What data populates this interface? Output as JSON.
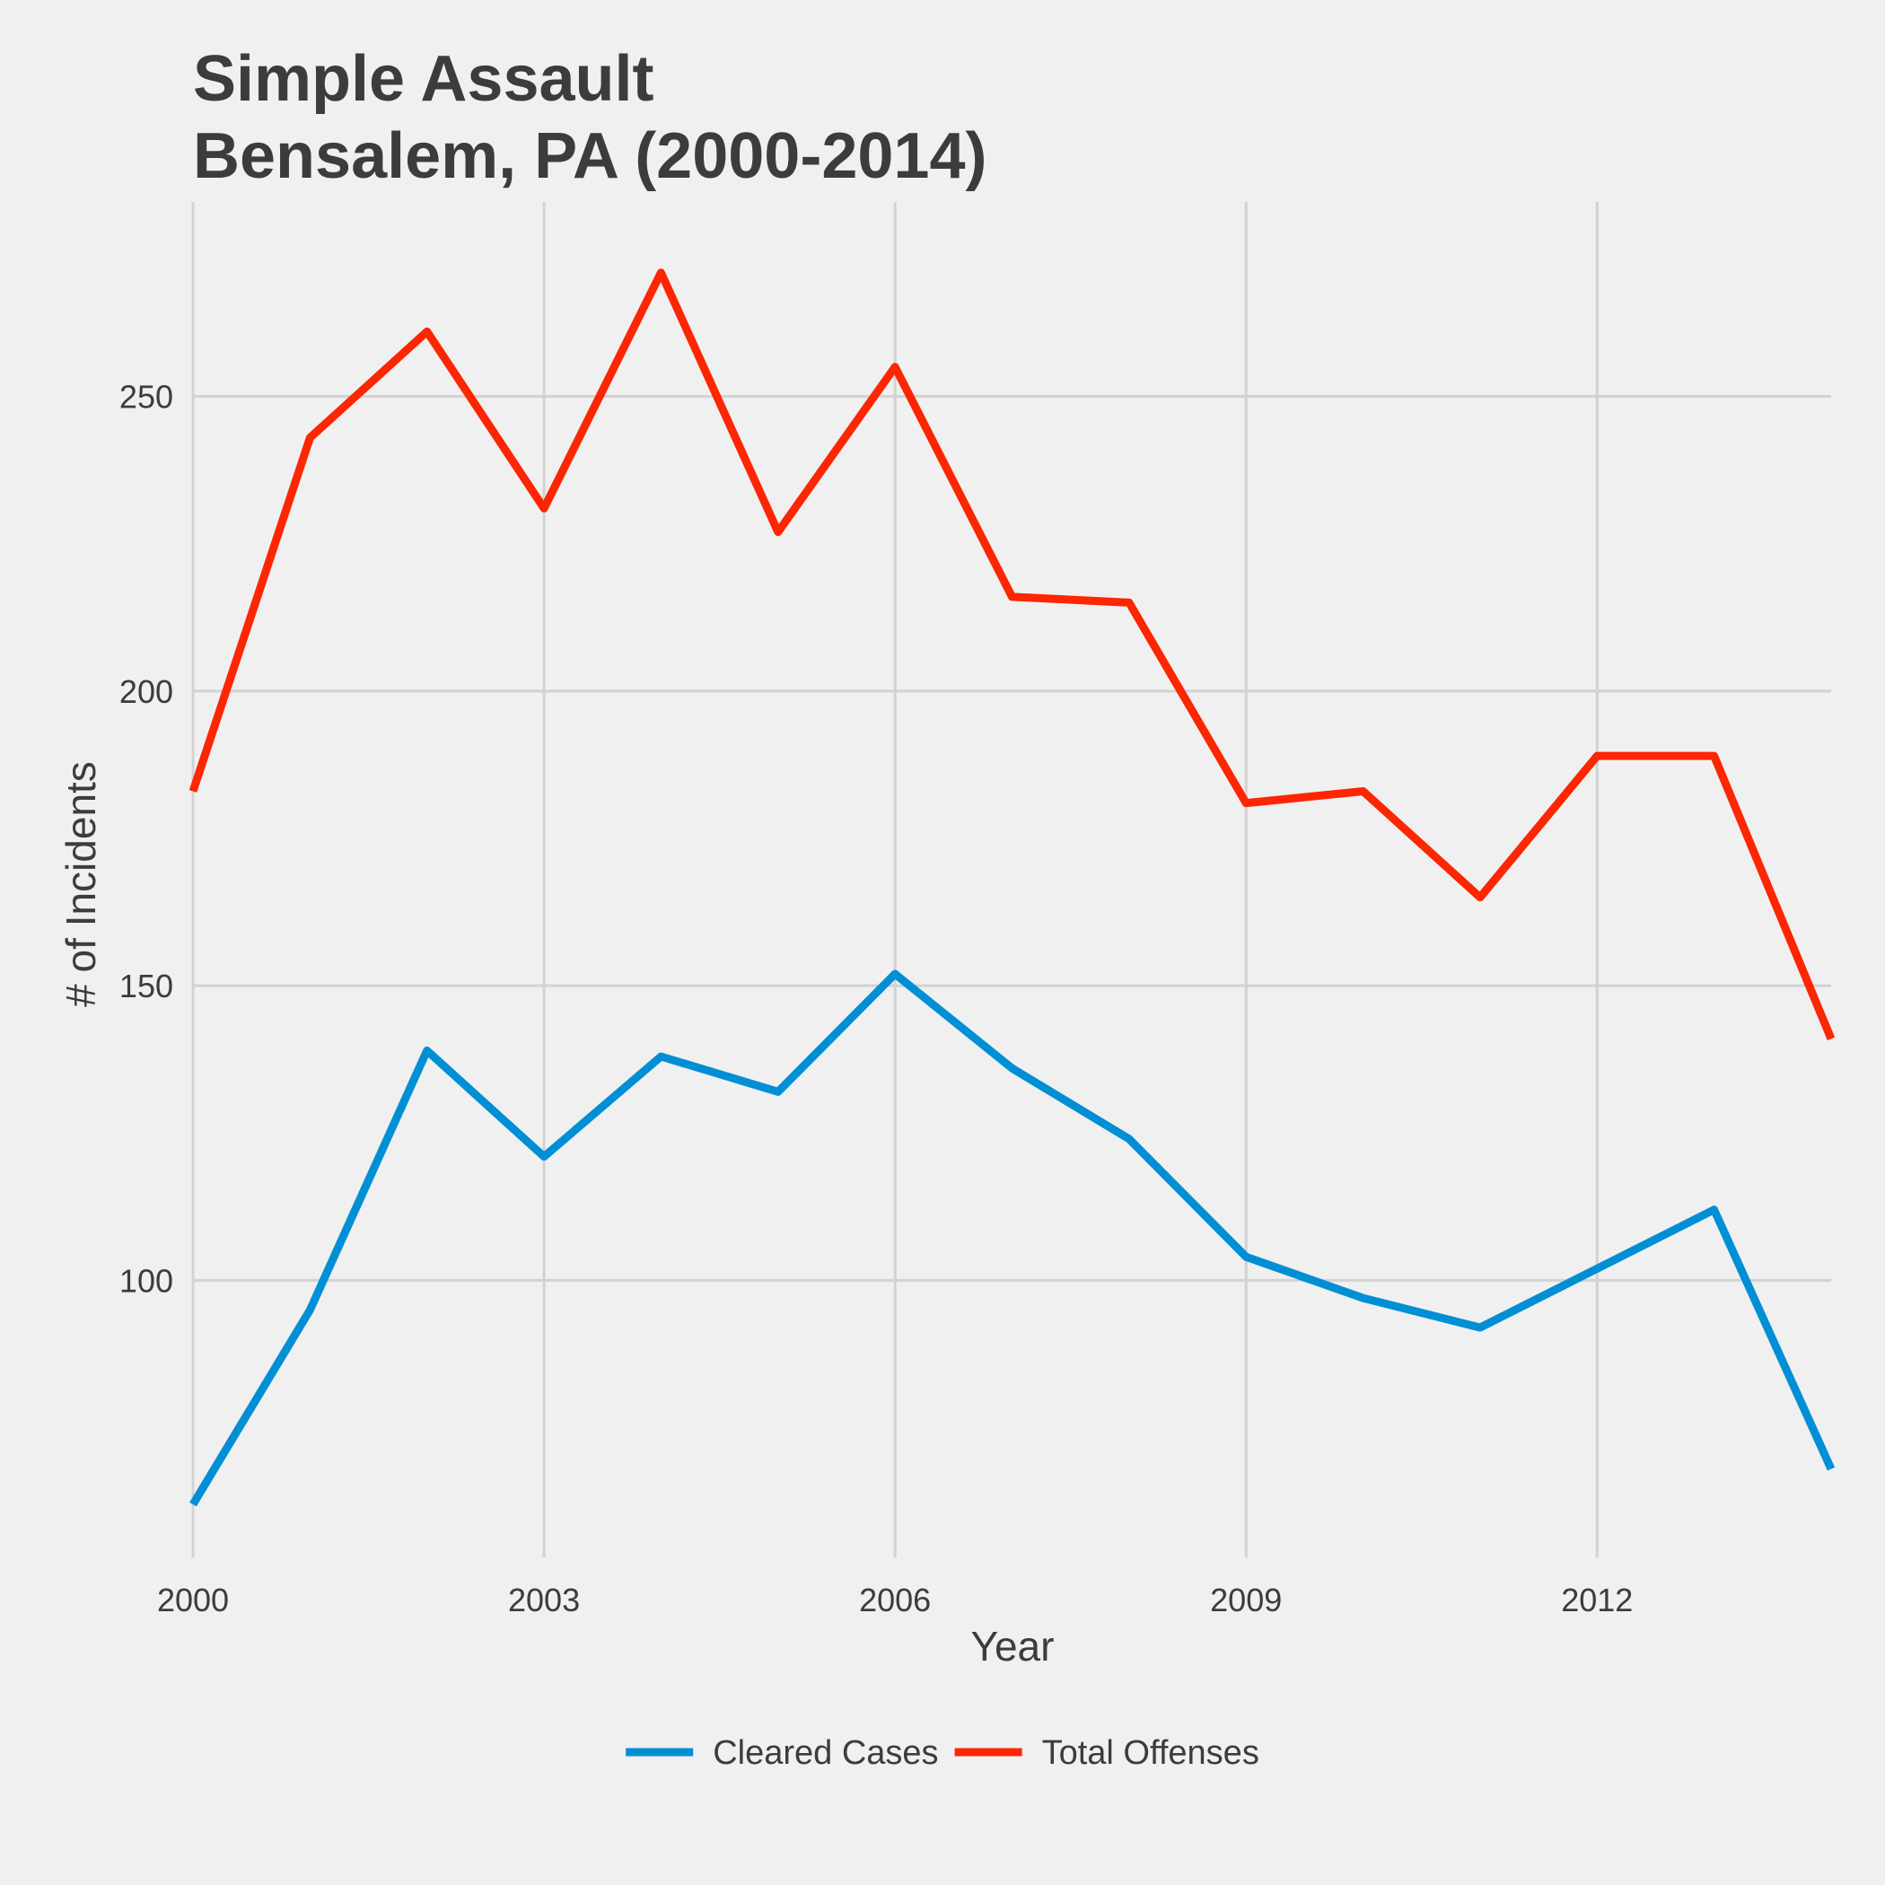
{
  "chart_data": {
    "type": "line",
    "title": [
      "Simple Assault",
      "Bensalem, PA (2000-2014)"
    ],
    "xlabel": "Year",
    "ylabel": "# of Incidents",
    "x": [
      2000,
      2001,
      2002,
      2003,
      2004,
      2005,
      2006,
      2007,
      2008,
      2009,
      2010,
      2011,
      2012,
      2013,
      2014
    ],
    "xlim": [
      2000,
      2014
    ],
    "ylim": [
      53,
      283
    ],
    "xticks": [
      2000,
      2003,
      2006,
      2009,
      2012
    ],
    "xtick_labels": [
      "2000",
      "2003",
      "2006",
      "2009",
      "2012"
    ],
    "yticks": [
      100,
      150,
      200,
      250
    ],
    "ytick_labels": [
      "100",
      "150",
      "200",
      "250"
    ],
    "grid": true,
    "legend_position": "bottom",
    "series": [
      {
        "name": "Cleared Cases",
        "color": "#008fd5",
        "values": [
          62,
          95,
          139,
          121,
          138,
          132,
          152,
          136,
          124,
          104,
          97,
          92,
          102,
          112,
          68
        ]
      },
      {
        "name": "Total Offenses",
        "color": "#fc2603",
        "values": [
          183,
          243,
          261,
          231,
          271,
          227,
          255,
          216,
          215,
          181,
          183,
          165,
          189,
          189,
          141
        ]
      }
    ]
  }
}
